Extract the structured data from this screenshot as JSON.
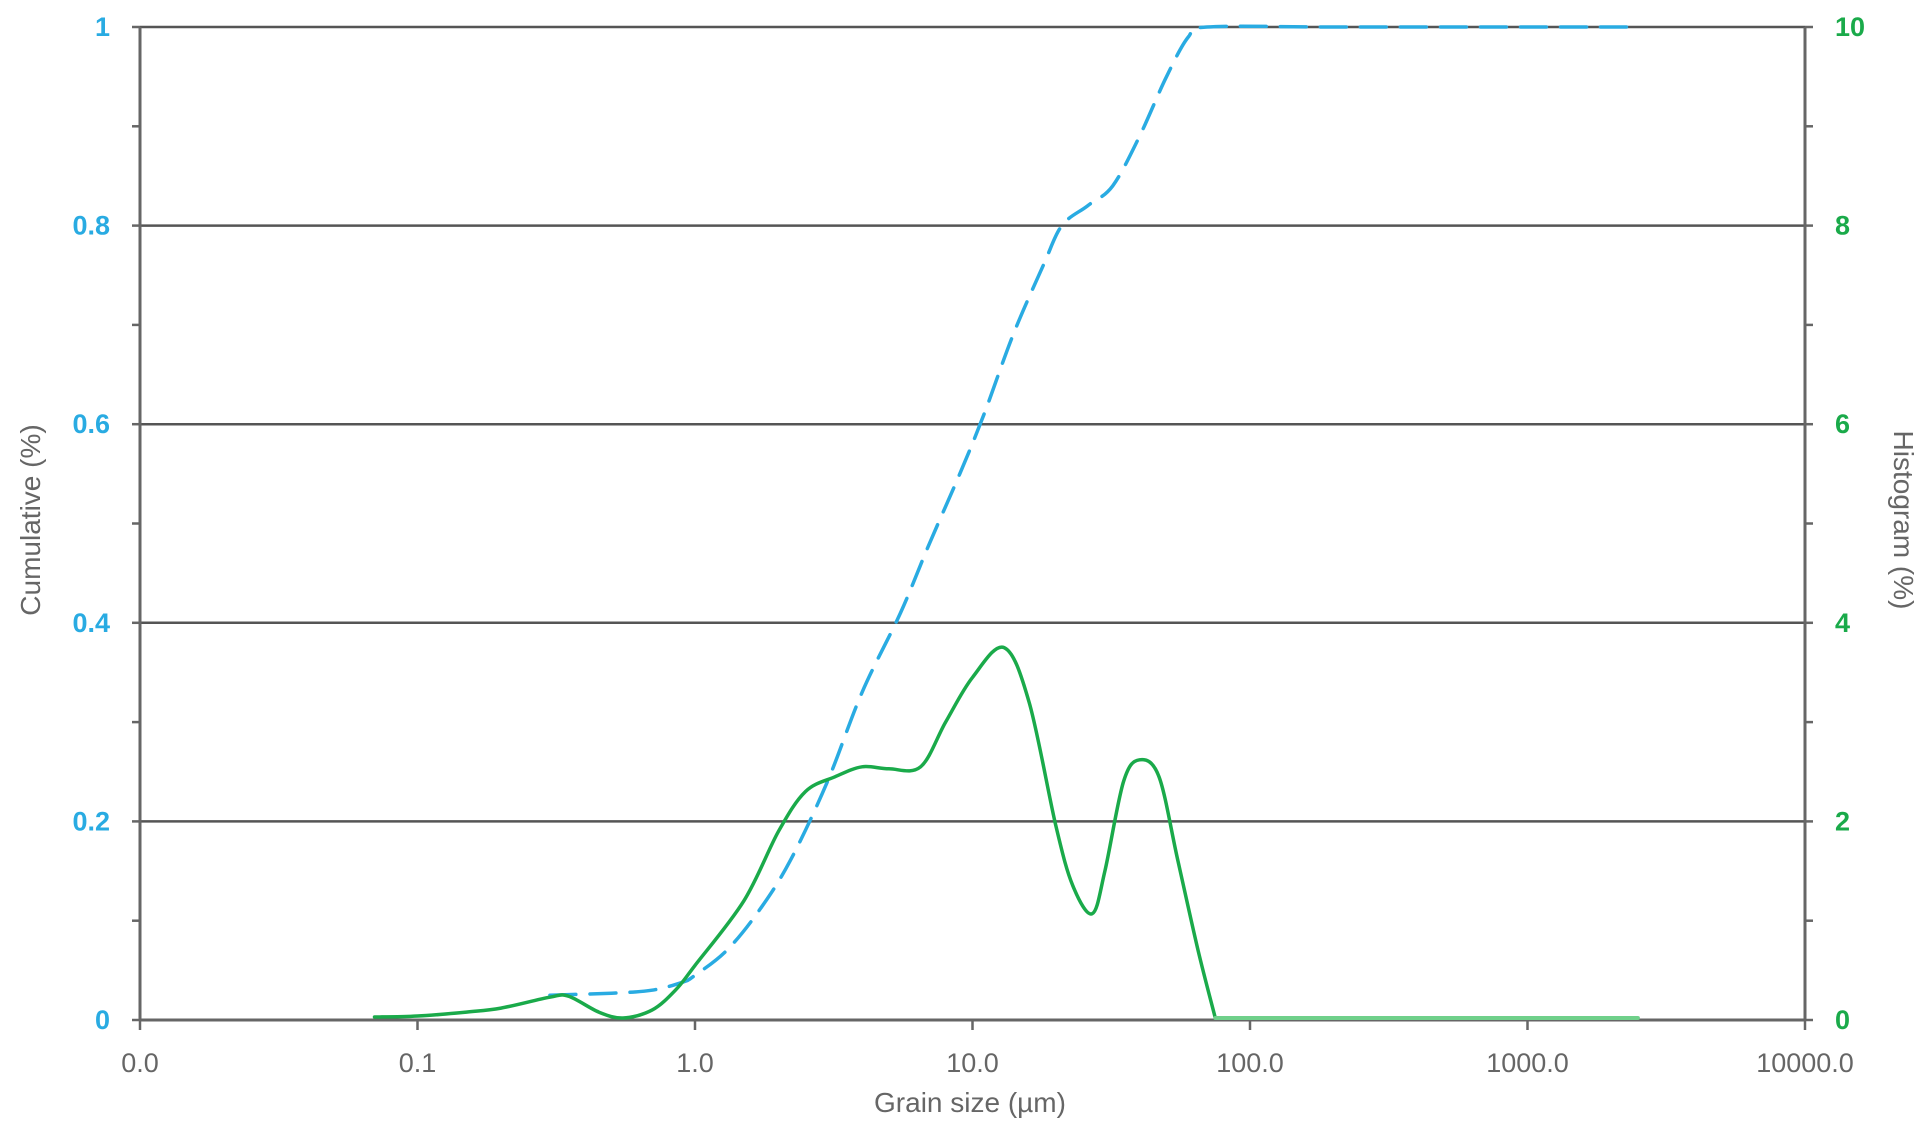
{
  "chart_data": {
    "type": "line",
    "xlabel": "Grain size (µm)",
    "ylabel_left": "Cumulative (%)",
    "ylabel_right": "Histogram (%)",
    "x_scale": "log",
    "xlim": [
      0.01,
      10000
    ],
    "x_tick_values": [
      0.01,
      0.1,
      1,
      10,
      100,
      1000,
      10000
    ],
    "x_tick_labels": [
      "0.0",
      "0.1",
      "1.0",
      "10.0",
      "100.0",
      "1000.0",
      "10000.0"
    ],
    "ylim_left": [
      0,
      1
    ],
    "y_left_tick_values": [
      0,
      0.2,
      0.4,
      0.6,
      0.8,
      1
    ],
    "y_left_tick_labels": [
      "0",
      "0.2",
      "0.4",
      "0.6",
      "0.8",
      "1"
    ],
    "ylim_right": [
      0,
      10
    ],
    "y_right_tick_values": [
      0,
      2,
      4,
      6,
      8,
      10
    ],
    "y_right_tick_labels": [
      "0",
      "2",
      "4",
      "6",
      "8",
      "10"
    ],
    "grid": "horizontal",
    "colors": {
      "cumulative": "#29abe2",
      "histogram": "#1aaa4a",
      "histogram_tail": "#6fd08a",
      "axis": "#666666",
      "grid": "#555555"
    },
    "series": [
      {
        "key": "cumulative",
        "axis": "left",
        "style": "dashed",
        "points": [
          [
            0.3,
            0.025
          ],
          [
            0.5,
            0.027
          ],
          [
            0.7,
            0.03
          ],
          [
            0.9,
            0.038
          ],
          [
            1.0,
            0.045
          ],
          [
            1.3,
            0.07
          ],
          [
            1.7,
            0.11
          ],
          [
            2.2,
            0.16
          ],
          [
            3.0,
            0.24
          ],
          [
            4.0,
            0.33
          ],
          [
            5.5,
            0.41
          ],
          [
            7.0,
            0.48
          ],
          [
            9.0,
            0.55
          ],
          [
            11.0,
            0.61
          ],
          [
            14.0,
            0.69
          ],
          [
            18.0,
            0.76
          ],
          [
            21.0,
            0.8
          ],
          [
            26.0,
            0.82
          ],
          [
            32.0,
            0.84
          ],
          [
            40.0,
            0.89
          ],
          [
            50.0,
            0.95
          ],
          [
            60.0,
            0.99
          ],
          [
            70.0,
            1.0
          ],
          [
            200.0,
            1.0
          ],
          [
            1000.0,
            1.0
          ],
          [
            2500.0,
            1.0
          ]
        ]
      },
      {
        "key": "histogram",
        "axis": "right",
        "style": "solid",
        "points": [
          [
            0.07,
            0.03
          ],
          [
            0.1,
            0.04
          ],
          [
            0.15,
            0.08
          ],
          [
            0.2,
            0.12
          ],
          [
            0.3,
            0.23
          ],
          [
            0.35,
            0.24
          ],
          [
            0.45,
            0.08
          ],
          [
            0.55,
            0.02
          ],
          [
            0.7,
            0.1
          ],
          [
            0.85,
            0.3
          ],
          [
            1.0,
            0.55
          ],
          [
            1.5,
            1.2
          ],
          [
            2.0,
            1.9
          ],
          [
            2.5,
            2.3
          ],
          [
            3.2,
            2.45
          ],
          [
            4.0,
            2.55
          ],
          [
            5.0,
            2.53
          ],
          [
            6.5,
            2.55
          ],
          [
            8.0,
            3.0
          ],
          [
            10.0,
            3.45
          ],
          [
            13.0,
            3.75
          ],
          [
            16.0,
            3.2
          ],
          [
            20.0,
            1.95
          ],
          [
            23.0,
            1.35
          ],
          [
            27.0,
            1.07
          ],
          [
            30.0,
            1.5
          ],
          [
            35.0,
            2.4
          ],
          [
            40.0,
            2.62
          ],
          [
            47.0,
            2.45
          ],
          [
            55.0,
            1.6
          ],
          [
            65.0,
            0.7
          ],
          [
            75.0,
            0.02
          ]
        ]
      },
      {
        "key": "histogram_tail",
        "axis": "right",
        "style": "solid",
        "points": [
          [
            75.0,
            0.02
          ],
          [
            2500.0,
            0.02
          ]
        ]
      }
    ]
  }
}
